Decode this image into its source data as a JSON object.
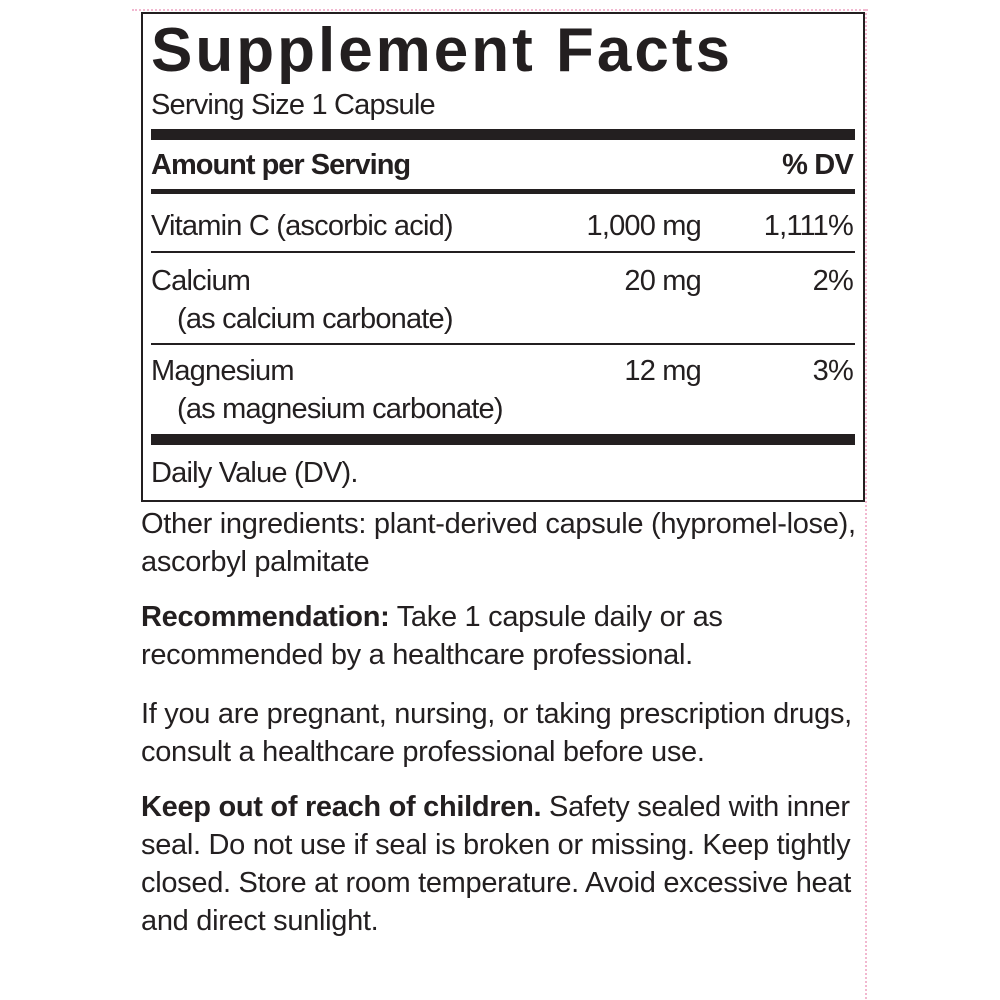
{
  "label": {
    "title": "Supplement Facts",
    "serving_size": "Serving Size 1 Capsule",
    "header": {
      "amount": "Amount per Serving",
      "dv": "% DV"
    },
    "rows": [
      {
        "name": "Vitamin C (ascorbic acid)",
        "sub": "",
        "amount": "1,000 mg",
        "dv": "1,111%"
      },
      {
        "name": "Calcium",
        "sub": "(as calcium carbonate)",
        "amount": "20 mg",
        "dv": "2%"
      },
      {
        "name": "Magnesium",
        "sub": "(as magnesium carbonate)",
        "amount": "12 mg",
        "dv": "3%"
      }
    ],
    "footnote": "Daily Value (DV)."
  },
  "other_ingredients": "Other ingredients: plant-derived capsule (hypromel-lose), ascorbyl palmitate",
  "recommendation": {
    "lead": "Recommendation:",
    "text": " Take 1 capsule daily or as recommended by a healthcare professional."
  },
  "warning": "If you are pregnant, nursing, or taking prescription drugs, consult a healthcare professional before use.",
  "storage": {
    "lead": "Keep out of reach of children.",
    "text": " Safety sealed with inner seal. Do not use if seal is broken or missing. Keep tightly closed. Store at room temperature. Avoid excessive heat and direct sunlight."
  }
}
